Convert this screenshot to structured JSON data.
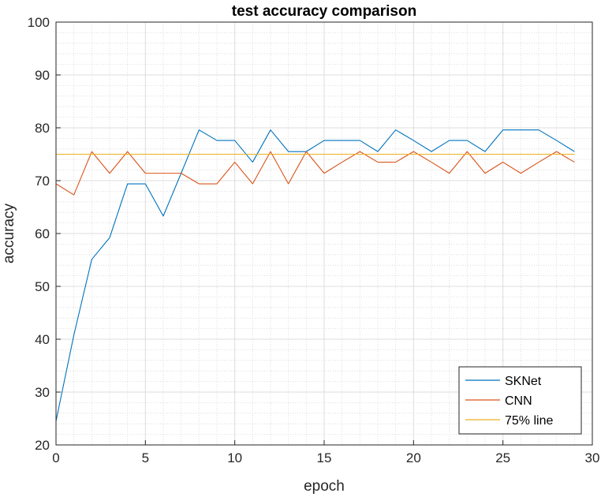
{
  "chart_data": {
    "type": "line",
    "title": "test accuracy comparison",
    "xlabel": "epoch",
    "ylabel": "accuracy",
    "xlim": [
      0,
      30
    ],
    "ylim": [
      20,
      100
    ],
    "xticks": [
      0,
      5,
      10,
      15,
      20,
      25,
      30
    ],
    "yticks": [
      20,
      30,
      40,
      50,
      60,
      70,
      80,
      90,
      100
    ],
    "grid": true,
    "minor_grid": true,
    "legend_position": "bottom-right",
    "x": [
      0,
      1,
      2,
      3,
      4,
      5,
      6,
      7,
      8,
      9,
      10,
      11,
      12,
      13,
      14,
      15,
      16,
      17,
      18,
      19,
      20,
      21,
      22,
      23,
      24,
      25,
      26,
      27,
      28,
      29
    ],
    "series": [
      {
        "name": "SKNet",
        "color": "#0072BD",
        "values": [
          24.5,
          40.8,
          55.1,
          59.2,
          69.4,
          69.4,
          63.3,
          71.4,
          79.6,
          77.6,
          77.6,
          73.5,
          79.6,
          75.5,
          75.5,
          77.6,
          77.6,
          77.6,
          75.5,
          79.6,
          77.6,
          75.5,
          77.6,
          77.6,
          75.5,
          79.6,
          79.6,
          79.6,
          77.6,
          75.5
        ]
      },
      {
        "name": "CNN",
        "color": "#D95319",
        "values": [
          69.4,
          67.3,
          75.5,
          71.4,
          75.5,
          71.4,
          71.4,
          71.4,
          69.4,
          69.4,
          73.5,
          69.4,
          75.5,
          69.4,
          75.5,
          71.4,
          73.5,
          75.5,
          73.5,
          73.5,
          75.5,
          73.5,
          71.4,
          75.5,
          71.4,
          73.5,
          71.4,
          73.5,
          75.5,
          73.5
        ]
      },
      {
        "name": "75% line",
        "color": "#EDB120",
        "values": [
          75,
          75,
          75,
          75,
          75,
          75,
          75,
          75,
          75,
          75,
          75,
          75,
          75,
          75,
          75,
          75,
          75,
          75,
          75,
          75,
          75,
          75,
          75,
          75,
          75,
          75,
          75,
          75,
          75,
          75
        ]
      }
    ]
  }
}
